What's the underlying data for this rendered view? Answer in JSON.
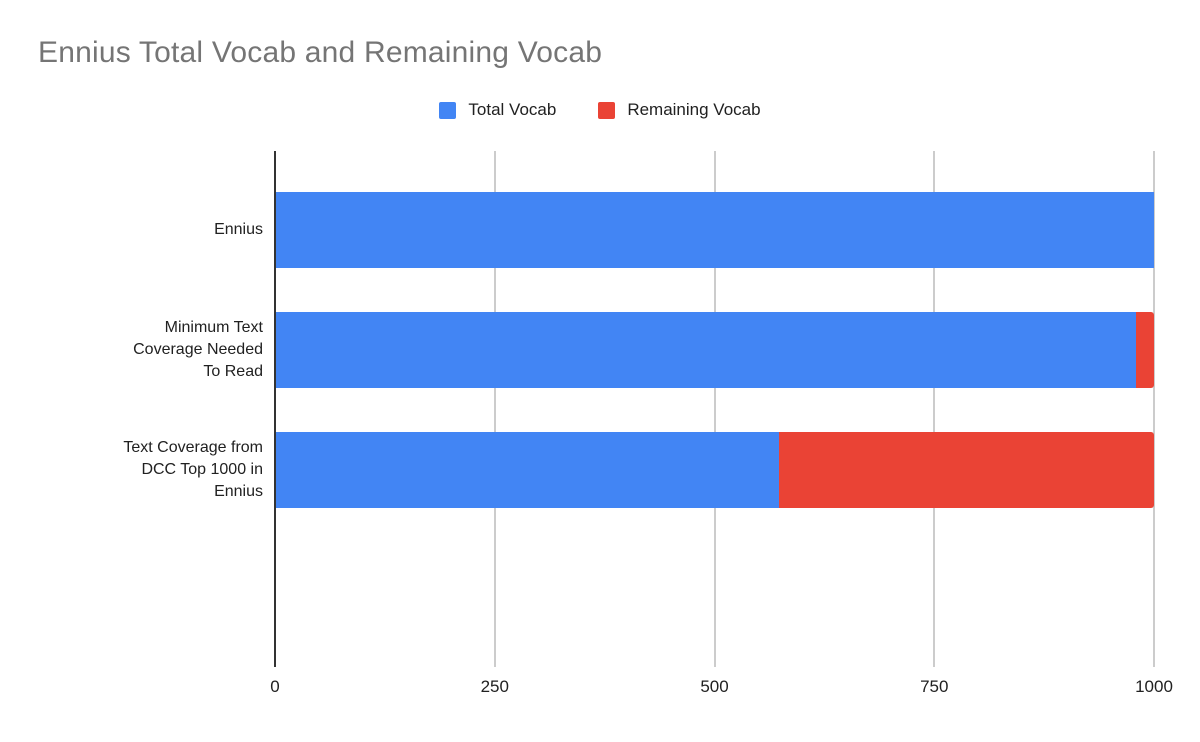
{
  "title": {
    "text": "Ennius Total Vocab and Remaining Vocab",
    "color": "#757575"
  },
  "legend": {
    "position": "top-center",
    "items": [
      {
        "label": "Total Vocab",
        "color": "#4285f4"
      },
      {
        "label": "Remaining Vocab",
        "color": "#ea4335"
      }
    ]
  },
  "chart_data": {
    "type": "bar",
    "orientation": "horizontal",
    "stacked": true,
    "title": "Ennius Total Vocab and Remaining Vocab",
    "categories": [
      "Ennius",
      "Minimum Text Coverage Needed To Read",
      "Text Coverage from DCC Top 1000 in Ennius"
    ],
    "category_label_lines": [
      [
        "Ennius"
      ],
      [
        "Minimum Text",
        "Coverage Needed",
        "To Read"
      ],
      [
        "Text Coverage from",
        "DCC Top 1000 in",
        "Ennius"
      ]
    ],
    "series": [
      {
        "name": "Total Vocab",
        "color": "#4285f4",
        "values": [
          1000,
          980,
          573
        ]
      },
      {
        "name": "Remaining Vocab",
        "color": "#ea4335",
        "values": [
          0,
          20,
          427
        ]
      }
    ],
    "xlabel": "",
    "ylabel": "",
    "x_axis": {
      "min": 0,
      "max": 1000,
      "ticks": [
        0,
        250,
        500,
        750,
        1000
      ]
    },
    "grid": true,
    "legend_position": "top",
    "axis_color": "#333333",
    "gridline_color": "#cccccc",
    "text_color": "#212121",
    "title_color": "#757575",
    "background_color": "#ffffff"
  }
}
